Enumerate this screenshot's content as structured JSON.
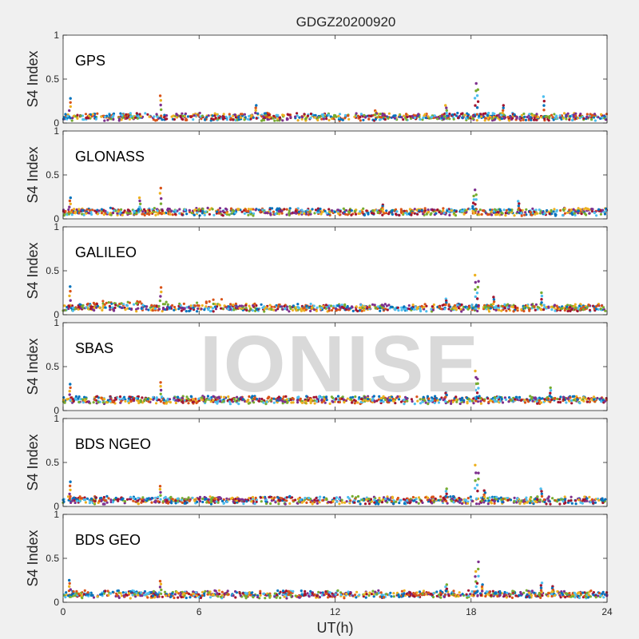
{
  "figure": {
    "title": "GDGZ20200920",
    "watermark": "IONISE",
    "xlabel": "UT(h)",
    "x_ticks": [
      "0",
      "6",
      "12",
      "18",
      "24"
    ],
    "y_ticks": [
      "0",
      "0.5",
      "1"
    ]
  },
  "chart_data": {
    "type": "scatter",
    "title": "GDGZ20200920",
    "xlabel": "UT(h)",
    "xlim": [
      0,
      24
    ],
    "ylim": [
      0,
      1
    ],
    "grid": false,
    "series_colors": [
      "#0072BD",
      "#D95319",
      "#EDB120",
      "#7E2F8E",
      "#77AC30",
      "#4DBEEE",
      "#A2142F"
    ],
    "panels": [
      {
        "name": "GPS",
        "ylabel": "S4 Index",
        "baseline": 0.07,
        "spikes": [
          {
            "x": 0.3,
            "y": 0.28
          },
          {
            "x": 4.3,
            "y": 0.31
          },
          {
            "x": 16.9,
            "y": 0.2
          },
          {
            "x": 18.2,
            "y": 0.45
          },
          {
            "x": 18.3,
            "y": 0.38
          },
          {
            "x": 21.2,
            "y": 0.3
          },
          {
            "x": 19.4,
            "y": 0.2
          },
          {
            "x": 8.5,
            "y": 0.2
          },
          {
            "x": 13.8,
            "y": 0.14
          }
        ]
      },
      {
        "name": "GLONASS",
        "ylabel": "S4 Index",
        "baseline": 0.08,
        "spikes": [
          {
            "x": 0.3,
            "y": 0.24
          },
          {
            "x": 4.3,
            "y": 0.35
          },
          {
            "x": 3.4,
            "y": 0.24
          },
          {
            "x": 18.2,
            "y": 0.33
          },
          {
            "x": 18.1,
            "y": 0.26
          },
          {
            "x": 20.1,
            "y": 0.2
          },
          {
            "x": 14.1,
            "y": 0.16
          }
        ]
      },
      {
        "name": "GALILEO",
        "ylabel": "S4 Index",
        "baseline": 0.08,
        "spikes": [
          {
            "x": 0.3,
            "y": 0.32
          },
          {
            "x": 4.3,
            "y": 0.31
          },
          {
            "x": 18.2,
            "y": 0.45
          },
          {
            "x": 18.3,
            "y": 0.38
          },
          {
            "x": 21.1,
            "y": 0.25
          },
          {
            "x": 16.9,
            "y": 0.18
          },
          {
            "x": 19.0,
            "y": 0.2
          }
        ]
      },
      {
        "name": "SBAS",
        "ylabel": "S4 Index",
        "baseline": 0.12,
        "spikes": [
          {
            "x": 0.3,
            "y": 0.3
          },
          {
            "x": 4.3,
            "y": 0.32
          },
          {
            "x": 18.2,
            "y": 0.45
          },
          {
            "x": 18.3,
            "y": 0.36
          },
          {
            "x": 21.5,
            "y": 0.26
          },
          {
            "x": 16.9,
            "y": 0.22
          }
        ]
      },
      {
        "name": "BDS NGEO",
        "ylabel": "S4 Index",
        "baseline": 0.07,
        "spikes": [
          {
            "x": 0.3,
            "y": 0.28
          },
          {
            "x": 4.3,
            "y": 0.23
          },
          {
            "x": 18.2,
            "y": 0.47
          },
          {
            "x": 18.3,
            "y": 0.38
          },
          {
            "x": 16.9,
            "y": 0.2
          },
          {
            "x": 21.1,
            "y": 0.2
          },
          {
            "x": 18.6,
            "y": 0.18
          }
        ]
      },
      {
        "name": "BDS GEO",
        "ylabel": "S4 Index",
        "baseline": 0.09,
        "spikes": [
          {
            "x": 0.3,
            "y": 0.25
          },
          {
            "x": 4.3,
            "y": 0.24
          },
          {
            "x": 18.2,
            "y": 0.35
          },
          {
            "x": 18.3,
            "y": 0.46
          },
          {
            "x": 16.9,
            "y": 0.2
          },
          {
            "x": 21.1,
            "y": 0.22
          },
          {
            "x": 21.6,
            "y": 0.18
          },
          {
            "x": 18.5,
            "y": 0.2
          }
        ]
      }
    ]
  }
}
